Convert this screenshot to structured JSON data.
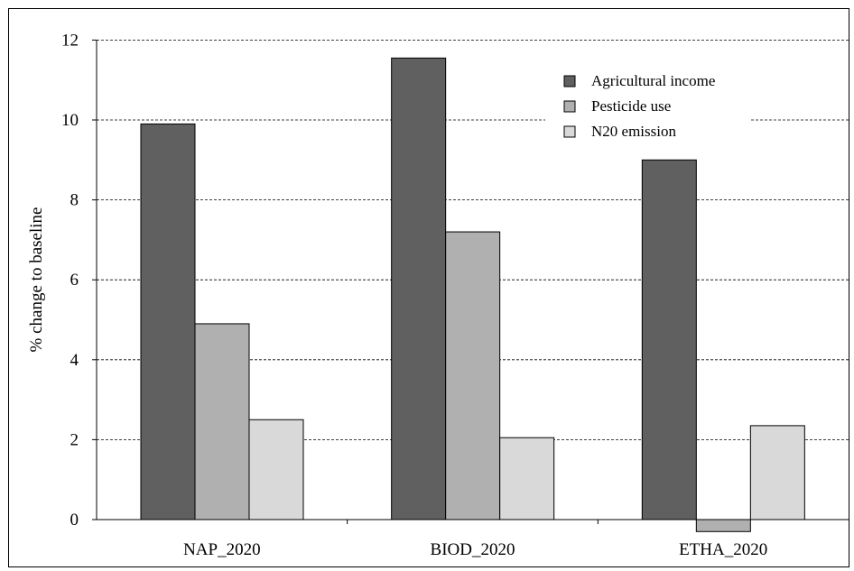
{
  "chart_data": {
    "type": "bar",
    "title": "",
    "xlabel": "",
    "ylabel": "% change to baseline",
    "ylim": [
      -0.4,
      12
    ],
    "yticks": [
      0,
      2,
      4,
      6,
      8,
      10,
      12
    ],
    "grid": true,
    "legend_position": "top-right",
    "categories": [
      "NAP_2020",
      "BIOD_2020",
      "ETHA_2020"
    ],
    "series": [
      {
        "name": "Agricultural income",
        "color": "#606060",
        "values": [
          9.9,
          11.55,
          9.0
        ]
      },
      {
        "name": "Pesticide use",
        "color": "#b0b0b0",
        "values": [
          4.9,
          7.2,
          -0.3
        ]
      },
      {
        "name": "N20 emission",
        "color": "#d9d9d9",
        "values": [
          2.5,
          2.05,
          2.35
        ]
      }
    ]
  }
}
